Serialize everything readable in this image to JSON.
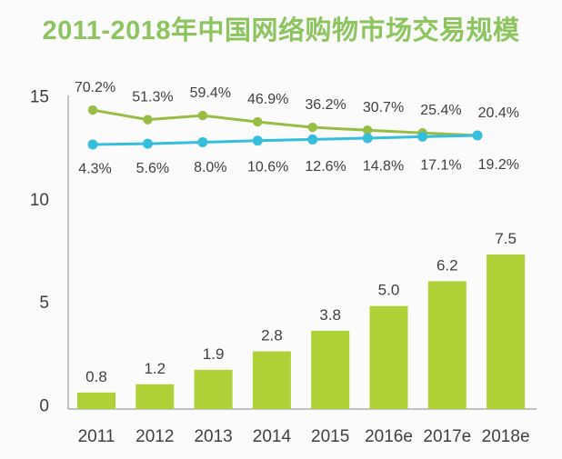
{
  "title": "2011-2018年中国网络购物市场交易规模",
  "colors": {
    "title": "#8cc45e",
    "bar": "#afd138",
    "growth_line": "#97bd45",
    "penetration_line": "#36bedd",
    "text": "#3f3f3f",
    "axis": "#9e9e9e",
    "background": "#fbfbfb"
  },
  "chart_data": {
    "type": "bar",
    "title": "2011-2018年中国网络购物市场交易规模",
    "categories": [
      "2011",
      "2012",
      "2013",
      "2014",
      "2015",
      "2016e",
      "2017e",
      "2018e"
    ],
    "xlabel": "",
    "ylabel": "",
    "ylim": [
      0,
      15
    ],
    "y_ticks": [
      0,
      5,
      10,
      15
    ],
    "grid": false,
    "legend": "none",
    "series": [
      {
        "name": "transaction-scale-bars",
        "type": "bar",
        "values": [
          0.8,
          1.2,
          1.9,
          2.8,
          3.8,
          5.0,
          6.2,
          7.5
        ],
        "labels": [
          "0.8",
          "1.2",
          "1.9",
          "2.8",
          "3.8",
          "5.0",
          "6.2",
          "7.5"
        ],
        "color": "#afd138"
      },
      {
        "name": "growth-rate-line",
        "type": "line",
        "values": [
          70.2,
          51.3,
          59.4,
          46.9,
          36.2,
          30.7,
          25.4,
          20.4
        ],
        "labels": [
          "70.2%",
          "51.3%",
          "59.4%",
          "46.9%",
          "36.2%",
          "30.7%",
          "25.4%",
          "20.4%"
        ],
        "color": "#97bd45"
      },
      {
        "name": "penetration-rate-line",
        "type": "line",
        "values": [
          4.3,
          5.6,
          8.0,
          10.6,
          12.6,
          14.8,
          17.1,
          19.2
        ],
        "labels": [
          "4.3%",
          "5.6%",
          "8.0%",
          "10.6%",
          "12.6%",
          "14.8%",
          "17.1%",
          "19.2%"
        ],
        "color": "#36bedd"
      }
    ]
  }
}
